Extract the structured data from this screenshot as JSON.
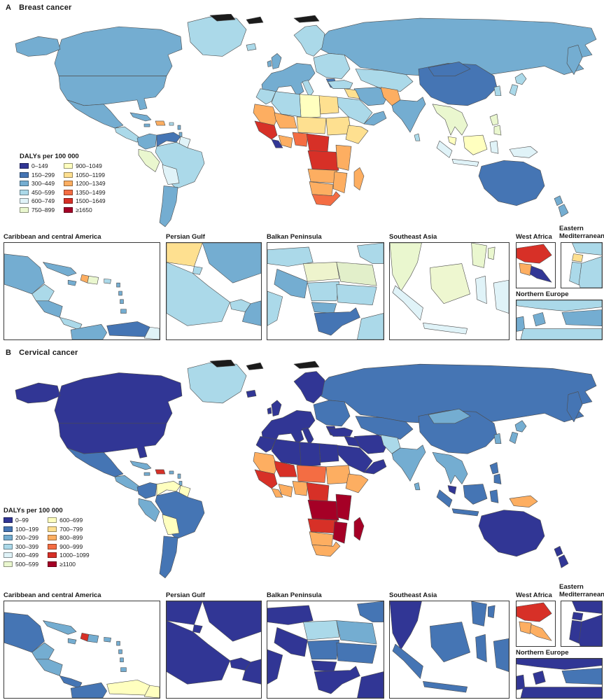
{
  "figure": {
    "panel_a": {
      "label": "A",
      "title": "Breast cancer",
      "legend_title": "DALYs per 100 000",
      "legend_col1": [
        {
          "label": "0–149",
          "color": "#313695"
        },
        {
          "label": "150–299",
          "color": "#4575b4"
        },
        {
          "label": "300–449",
          "color": "#74add1"
        },
        {
          "label": "450–599",
          "color": "#abd9e9"
        },
        {
          "label": "600–749",
          "color": "#e0f3f8"
        },
        {
          "label": "750–899",
          "color": "#eaf7cf"
        }
      ],
      "legend_col2": [
        {
          "label": "900–1049",
          "color": "#ffffbf"
        },
        {
          "label": "1050–1199",
          "color": "#fee090"
        },
        {
          "label": "1200–1349",
          "color": "#fdae61"
        },
        {
          "label": "1350–1499",
          "color": "#f46d43"
        },
        {
          "label": "1500–1649",
          "color": "#d73027"
        },
        {
          "label": "≥1650",
          "color": "#a50026"
        }
      ],
      "inset_labels": {
        "caribbean": "Caribbean and central America",
        "persian_gulf": "Persian Gulf",
        "balkan": "Balkan Peninsula",
        "southeast_asia": "Southeast Asia",
        "west_africa": "West Africa",
        "eastern_mediterranean": "Eastern Mediterranean",
        "northern_europe": "Northern Europe"
      },
      "map_fills": {
        "russia": "#74add1",
        "canada": "#74add1",
        "usa": "#74add1",
        "greenland": "#abd9e9",
        "alaska": "#74add1",
        "mexico": "#74add1",
        "central_america": "#abd9e9",
        "cuba": "#74add1",
        "jamaica": "#74add1",
        "hispaniola": "#fdae61",
        "puerto_rico": "#abd9e9",
        "lesser_antilles": "#74add1",
        "colombia": "#74add1",
        "venezuela": "#4575b4",
        "guyana_suriname": "#e0f3f8",
        "peru": "#eaf7cf",
        "brazil": "#abd9e9",
        "bolivia_paraguay": "#e0f3f8",
        "argentina_chile": "#74add1",
        "iceland": "#abd9e9",
        "uk": "#74add1",
        "scandinavia": "#abd9e9",
        "western_europe": "#74add1",
        "italy": "#abd9e9",
        "eastern_europe": "#abd9e9",
        "greece": "#4575b4",
        "kazakhstan": "#abd9e9",
        "turkey": "#abd9e9",
        "iran": "#74add1",
        "iraq": "#fee090",
        "saudi": "#abd9e9",
        "oman_yemen": "#74add1",
        "egypt": "#fee090",
        "libya": "#ffffbf",
        "algeria": "#abd9e9",
        "morocco": "#abd9e9",
        "mauritania": "#fdae61",
        "mali": "#fdae61",
        "niger_chad": "#fee090",
        "sudan": "#fee090",
        "ethiopia_horn": "#fee090",
        "senegal_guinea": "#d73027",
        "liberia": "#313695",
        "ivory_ghana": "#fdae61",
        "nigeria": "#f46d43",
        "cameroon": "#d73027",
        "drc": "#d73027",
        "east_africa": "#fdae61",
        "angola_zambia": "#fdae61",
        "mozambique": "#fdae61",
        "namibia_botswana": "#fdae61",
        "south_africa": "#f46d43",
        "madagascar": "#fdae61",
        "pakistan": "#fdae61",
        "india": "#74add1",
        "sri_lanka": "#abd9e9",
        "china": "#4575b4",
        "mongolia": "#4575b4",
        "korea": "#abd9e9",
        "japan": "#abd9e9",
        "se_asia_mainland": "#eaf7cf",
        "malaysia_pen": "#ffffbf",
        "sumatra": "#e0f3f8",
        "java": "#e0f3f8",
        "borneo": "#ffffbf",
        "sulawesi": "#e0f3f8",
        "philippines": "#eaf7cf",
        "papua": "#e0f3f8",
        "australia": "#4575b4",
        "new_zealand": "#74add1",
        "arctic_islands": "#1b1b1b"
      },
      "inset_fills": {
        "caribbean": {
          "mexico": "#74add1",
          "belize_guat": "#abd9e9",
          "honduras_nica": "#74add1",
          "costa_panama": "#abd9e9",
          "cuba": "#74add1",
          "jamaica": "#74add1",
          "haiti": "#fdae61",
          "dominican": "#eaf7cf",
          "puerto_rico": "#abd9e9",
          "antilles": "#74add1",
          "trinidad": "#74add1",
          "colombia": "#74add1",
          "venezuela": "#4575b4",
          "guyana": "#e0f3f8"
        },
        "persian_gulf": {
          "iraq": "#fee090",
          "iran": "#74add1",
          "kuwait": "#abd9e9",
          "saudi": "#abd9e9",
          "qatar_uae": "#abd9e9",
          "oman": "#74add1"
        },
        "balkan": {
          "austria_czech": "#abd9e9",
          "moldova_ukraine": "#abd9e9",
          "hungary": "#eef4cd",
          "romania": "#e2efca",
          "croatia_bosnia": "#74add1",
          "serbia": "#abd9e9",
          "bulgaria": "#abd9e9",
          "albania_macedonia": "#74add1",
          "greece": "#4575b4",
          "italy": "#abd9e9",
          "turkey_corner": "#abd9e9"
        },
        "southeast_asia": {
          "mainland": "#eaf7cf",
          "sumatra": "#e0f3f8",
          "java": "#e0f3f8",
          "borneo": "#eef7d0",
          "sulawesi": "#e0f3f8",
          "philippines": "#eaf7cf",
          "papua": "#e0f3f8"
        },
        "west_africa": {
          "guinea": "#d73027",
          "sierra_leone": "#fdae61",
          "liberia": "#313695"
        },
        "eastern_mediterranean": {
          "syria": "#abd9e9",
          "lebanon": "#fee090",
          "israel": "#abd9e9",
          "jordan": "#abd9e9"
        },
        "northern_europe": {
          "scandinavia": "#abd9e9",
          "denmark": "#74add1",
          "baltic": "#74add1",
          "germany_poland": "#abd9e9",
          "uk_corner": "#74add1"
        }
      }
    },
    "panel_b": {
      "label": "B",
      "title": "Cervical cancer",
      "legend_title": "DALYs per 100 000",
      "legend_col1": [
        {
          "label": "0–99",
          "color": "#313695"
        },
        {
          "label": "100–199",
          "color": "#4575b4"
        },
        {
          "label": "200–299",
          "color": "#74add1"
        },
        {
          "label": "300–399",
          "color": "#abd9e9"
        },
        {
          "label": "400–499",
          "color": "#e0f3f8"
        },
        {
          "label": "500–599",
          "color": "#eaf7cf"
        }
      ],
      "legend_col2": [
        {
          "label": "600–699",
          "color": "#ffffbf"
        },
        {
          "label": "700–799",
          "color": "#fee090"
        },
        {
          "label": "800–899",
          "color": "#fdae61"
        },
        {
          "label": "900–999",
          "color": "#f46d43"
        },
        {
          "label": "1000–1099",
          "color": "#d73027"
        },
        {
          "label": "≥1100",
          "color": "#a50026"
        }
      ],
      "inset_labels": {
        "caribbean": "Caribbean and central America",
        "persian_gulf": "Persian Gulf",
        "balkan": "Balkan Peninsula",
        "southeast_asia": "Southeast Asia",
        "west_africa": "West Africa",
        "eastern_mediterranean": "Eastern Mediterranean",
        "northern_europe": "Northern Europe"
      },
      "map_fills": {
        "russia": "#4575b4",
        "canada": "#313695",
        "usa": "#313695",
        "greenland": "#abd9e9",
        "alaska": "#313695",
        "mexico": "#4575b4",
        "central_america": "#74add1",
        "cuba": "#74add1",
        "jamaica": "#74add1",
        "hispaniola": "#d73027",
        "puerto_rico": "#74add1",
        "lesser_antilles": "#74add1",
        "colombia": "#4575b4",
        "venezuela": "#ffffbf",
        "guyana_suriname": "#ffffbf",
        "peru": "#74add1",
        "brazil": "#4575b4",
        "bolivia_paraguay": "#ffffbf",
        "argentina_chile": "#4575b4",
        "iceland": "#313695",
        "uk": "#313695",
        "scandinavia": "#313695",
        "western_europe": "#313695",
        "italy": "#313695",
        "eastern_europe": "#4575b4",
        "greece": "#313695",
        "kazakhstan": "#4575b4",
        "turkey": "#313695",
        "iran": "#313695",
        "iraq": "#313695",
        "saudi": "#313695",
        "oman_yemen": "#313695",
        "egypt": "#313695",
        "libya": "#313695",
        "algeria": "#313695",
        "morocco": "#313695",
        "mauritania": "#fdae61",
        "mali": "#d73027",
        "niger_chad": "#f46d43",
        "sudan": "#fdae61",
        "ethiopia_horn": "#fdae61",
        "senegal_guinea": "#d73027",
        "liberia": "#fdae61",
        "ivory_ghana": "#fdae61",
        "nigeria": "#fdae61",
        "cameroon": "#d73027",
        "drc": "#a50026",
        "east_africa": "#a50026",
        "angola_zambia": "#d73027",
        "mozambique": "#a50026",
        "namibia_botswana": "#fdae61",
        "south_africa": "#fdae61",
        "madagascar": "#a50026",
        "pakistan": "#abd9e9",
        "india": "#74add1",
        "sri_lanka": "#74add1",
        "china": "#4575b4",
        "mongolia": "#74add1",
        "korea": "#74add1",
        "japan": "#74add1",
        "se_asia_mainland": "#74add1",
        "malaysia_pen": "#313695",
        "sumatra": "#4575b4",
        "java": "#4575b4",
        "borneo": "#4575b4",
        "sulawesi": "#4575b4",
        "philippines": "#4575b4",
        "papua": "#fdae61",
        "australia": "#313695",
        "new_zealand": "#313695",
        "arctic_islands": "#1b1b1b"
      },
      "inset_fills": {
        "caribbean": {
          "mexico": "#4575b4",
          "belize_guat": "#74add1",
          "honduras_nica": "#74add1",
          "costa_panama": "#4575b4",
          "cuba": "#74add1",
          "jamaica": "#74add1",
          "haiti": "#d73027",
          "dominican": "#74add1",
          "puerto_rico": "#74add1",
          "antilles": "#74add1",
          "trinidad": "#74add1",
          "colombia": "#4575b4",
          "venezuela": "#ffffbf",
          "guyana": "#ffffbf"
        },
        "persian_gulf": {
          "iraq": "#313695",
          "iran": "#313695",
          "kuwait": "#313695",
          "saudi": "#313695",
          "qatar_uae": "#313695",
          "oman": "#313695"
        },
        "balkan": {
          "austria_czech": "#313695",
          "moldova_ukraine": "#4575b4",
          "hungary": "#abd9e9",
          "romania": "#74add1",
          "croatia_bosnia": "#313695",
          "serbia": "#4575b4",
          "bulgaria": "#4575b4",
          "albania_macedonia": "#313695",
          "greece": "#313695",
          "italy": "#313695",
          "turkey_corner": "#313695"
        },
        "southeast_asia": {
          "mainland": "#313695",
          "sumatra": "#4575b4",
          "java": "#4575b4",
          "borneo": "#4575b4",
          "sulawesi": "#4575b4",
          "philippines": "#4575b4",
          "papua": "#4575b4"
        },
        "west_africa": {
          "guinea": "#d73027",
          "sierra_leone": "#fdae61",
          "liberia": "#fdae61"
        },
        "eastern_mediterranean": {
          "syria": "#313695",
          "lebanon": "#313695",
          "israel": "#313695",
          "jordan": "#313695"
        },
        "northern_europe": {
          "scandinavia": "#313695",
          "denmark": "#313695",
          "baltic": "#4575b4",
          "germany_poland": "#313695",
          "uk_corner": "#313695"
        }
      }
    }
  }
}
